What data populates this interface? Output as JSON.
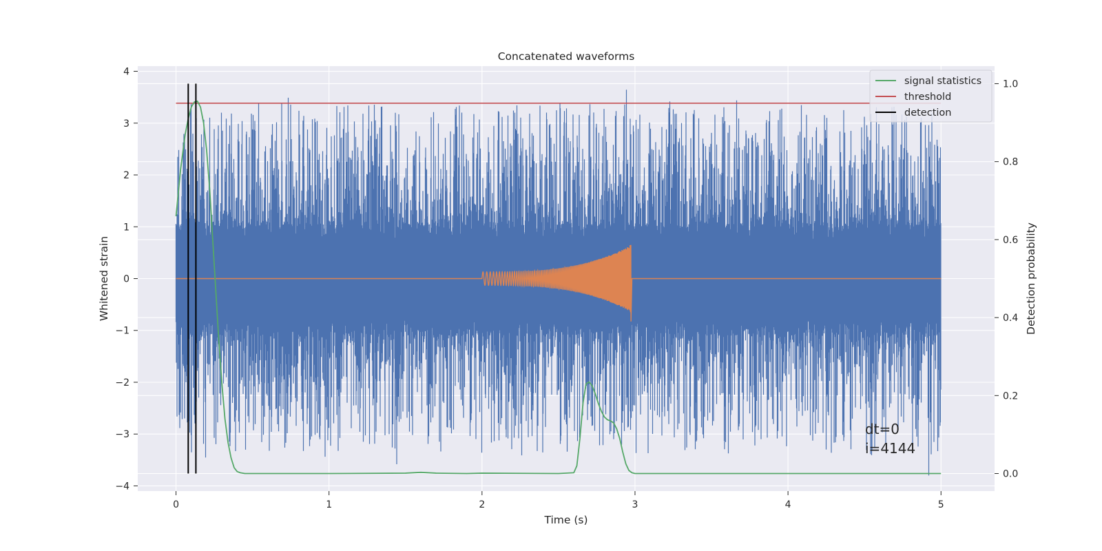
{
  "chart_data": {
    "type": "line",
    "title": "Concatenated waveforms",
    "xlabel": "Time (s)",
    "ylabel": "Whitened strain",
    "y2label": "Detection probability",
    "xlim": [
      -0.25,
      5.35
    ],
    "ylim": [
      -4.1,
      4.1
    ],
    "y2lim": [
      -0.045,
      1.045
    ],
    "xticks": [
      0,
      1,
      2,
      3,
      4,
      5
    ],
    "yticks": [
      -4,
      -3,
      -2,
      -1,
      0,
      1,
      2,
      3,
      4
    ],
    "y2ticks": [
      0.0,
      0.2,
      0.4,
      0.6,
      0.8,
      1.0
    ],
    "xtick_labels": [
      "0",
      "1",
      "2",
      "3",
      "4",
      "5"
    ],
    "ytick_labels": [
      "−4",
      "−3",
      "−2",
      "−1",
      "0",
      "1",
      "2",
      "3",
      "4"
    ],
    "y2tick_labels": [
      "0.0",
      "0.2",
      "0.4",
      "0.6",
      "0.8",
      "1.0"
    ],
    "grid": true,
    "legend_position": "top-right",
    "legend": [
      {
        "label": "signal statistics",
        "color": "#55a868"
      },
      {
        "label": "threshold",
        "color": "#c44e52"
      },
      {
        "label": "detection",
        "color": "#000000"
      }
    ],
    "series": [
      {
        "kind": "noise-strain",
        "axis": "left",
        "color": "#4c72b0",
        "x_range": [
          0,
          5
        ],
        "core_amplitude": 0.75,
        "peak_amplitude": 2.0,
        "max_value": 3.7,
        "min_value": -3.8
      },
      {
        "kind": "chirp-waveform",
        "axis": "left",
        "color": "#dd8452",
        "x_range": [
          0,
          5
        ],
        "chirp_start": 2.0,
        "chirp_end": 2.98,
        "start_amplitude": 0.13,
        "end_amplitude": 0.65,
        "min_value": -0.9
      },
      {
        "name": "signal statistics",
        "axis": "right",
        "color": "#55a868",
        "x": [
          0,
          0.03,
          0.06,
          0.08,
          0.1,
          0.12,
          0.14,
          0.16,
          0.18,
          0.2,
          0.22,
          0.24,
          0.26,
          0.28,
          0.3,
          0.32,
          0.34,
          0.36,
          0.38,
          0.4,
          0.42,
          0.45,
          0.5,
          1.0,
          1.5,
          1.6,
          1.7,
          1.9,
          2.0,
          2.5,
          2.6,
          2.62,
          2.64,
          2.66,
          2.68,
          2.7,
          2.72,
          2.74,
          2.76,
          2.78,
          2.8,
          2.82,
          2.84,
          2.86,
          2.88,
          2.9,
          2.92,
          2.94,
          2.96,
          2.98,
          3.0,
          3.5,
          4.0,
          4.5,
          5.0
        ],
        "values": [
          0.66,
          0.78,
          0.87,
          0.91,
          0.94,
          0.953,
          0.955,
          0.94,
          0.9,
          0.83,
          0.73,
          0.6,
          0.47,
          0.34,
          0.23,
          0.14,
          0.08,
          0.04,
          0.015,
          0.005,
          0.002,
          0.0,
          0.0,
          0.0,
          0.001,
          0.003,
          0.001,
          0.0,
          0.001,
          0.0,
          0.002,
          0.02,
          0.09,
          0.18,
          0.23,
          0.235,
          0.225,
          0.205,
          0.18,
          0.16,
          0.145,
          0.138,
          0.135,
          0.13,
          0.115,
          0.09,
          0.055,
          0.025,
          0.008,
          0.002,
          0.0,
          0.0,
          0.0,
          0.0,
          0.0
        ]
      },
      {
        "name": "threshold",
        "axis": "right",
        "color": "#c44e52",
        "x": [
          0,
          5
        ],
        "values": [
          0.95,
          0.95
        ]
      }
    ],
    "detections": [
      0.08,
      0.13
    ],
    "annotations": [
      "dt=0",
      "i=4144"
    ]
  }
}
